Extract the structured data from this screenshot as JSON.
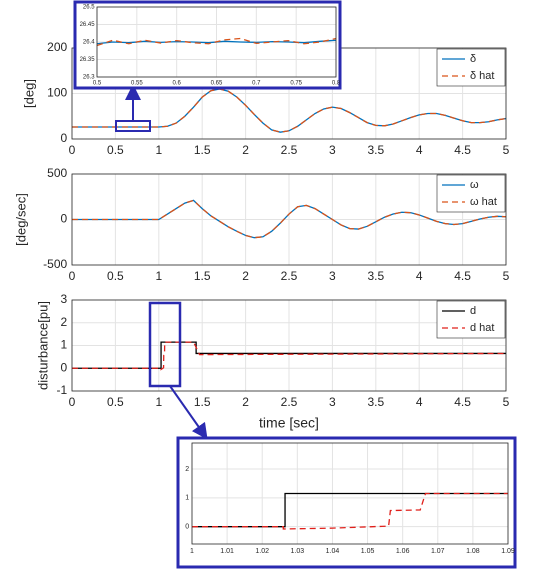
{
  "chart_data": [
    {
      "type": "line",
      "ylabel": "[deg]",
      "xlim": [
        0,
        5
      ],
      "ylim": [
        0,
        200
      ],
      "xticks": [
        0,
        0.5,
        1,
        1.5,
        2,
        2.5,
        3,
        3.5,
        4,
        4.5,
        5
      ],
      "yticks": [
        0,
        100,
        200
      ],
      "grid": true,
      "legend": "upper right",
      "x": [
        0,
        0.1,
        0.2,
        0.3,
        0.4,
        0.5,
        0.6,
        0.7,
        0.8,
        0.9,
        1.0,
        1.1,
        1.2,
        1.3,
        1.4,
        1.5,
        1.6,
        1.7,
        1.8,
        1.9,
        2.0,
        2.1,
        2.2,
        2.3,
        2.4,
        2.5,
        2.6,
        2.7,
        2.8,
        2.9,
        3.0,
        3.1,
        3.2,
        3.3,
        3.4,
        3.5,
        3.6,
        3.7,
        3.8,
        3.9,
        4.0,
        4.1,
        4.2,
        4.3,
        4.4,
        4.5,
        4.6,
        4.7,
        4.8,
        4.9,
        5.0
      ],
      "series": [
        {
          "name": "δ",
          "color": "#0072bd",
          "line_style": "solid",
          "values": [
            26.4,
            26.4,
            26.4,
            26.4,
            26.4,
            26.4,
            26.4,
            26.4,
            26.4,
            26.4,
            26.4,
            28,
            35,
            50,
            70,
            92,
            106,
            110,
            105,
            92,
            74,
            54,
            35,
            20,
            15,
            18,
            28,
            42,
            56,
            66,
            70,
            67,
            58,
            47,
            36,
            30,
            29,
            33,
            40,
            47,
            53,
            56,
            56,
            52,
            46,
            40,
            36,
            36,
            38,
            42,
            45
          ]
        },
        {
          "name": "δ hat",
          "color": "#d95319",
          "line_style": "dashed",
          "values": [
            26.4,
            26.4,
            26.4,
            26.4,
            26.4,
            26.4,
            26.4,
            26.4,
            26.4,
            26.4,
            26.4,
            28,
            35,
            50,
            70,
            92,
            106,
            110,
            105,
            92,
            74,
            54,
            35,
            20,
            15,
            18,
            28,
            42,
            56,
            66,
            70,
            67,
            58,
            47,
            36,
            30,
            29,
            33,
            40,
            47,
            53,
            56,
            56,
            52,
            46,
            40,
            36,
            36,
            38,
            42,
            45
          ]
        }
      ]
    },
    {
      "type": "line",
      "xlim": [
        0.5,
        0.8
      ],
      "ylim": [
        26.3,
        26.5
      ],
      "xticks": [
        0.5,
        0.55,
        0.6,
        0.65,
        0.7,
        0.75,
        0.8
      ],
      "yticks": [
        26.3,
        26.35,
        26.4,
        26.45,
        26.5
      ],
      "grid": true,
      "x": [
        0.5,
        0.52,
        0.54,
        0.56,
        0.58,
        0.6,
        0.62,
        0.64,
        0.66,
        0.68,
        0.7,
        0.72,
        0.74,
        0.76,
        0.78,
        0.8
      ],
      "series": [
        {
          "color": "#0072bd",
          "line_style": "solid",
          "values": [
            26.395,
            26.4,
            26.398,
            26.402,
            26.399,
            26.401,
            26.4,
            26.398,
            26.402,
            26.4,
            26.399,
            26.401,
            26.4,
            26.398,
            26.402,
            26.405
          ]
        },
        {
          "color": "#d95319",
          "line_style": "dashed",
          "values": [
            26.39,
            26.405,
            26.395,
            26.405,
            26.397,
            26.404,
            26.398,
            26.395,
            26.406,
            26.41,
            26.396,
            26.4,
            26.404,
            26.395,
            26.4,
            26.41
          ]
        }
      ]
    },
    {
      "type": "line",
      "ylabel": "[deg/sec]",
      "xlim": [
        0,
        5
      ],
      "ylim": [
        -500,
        500
      ],
      "xticks": [
        0,
        0.5,
        1,
        1.5,
        2,
        2.5,
        3,
        3.5,
        4,
        4.5,
        5
      ],
      "yticks": [
        -500,
        0,
        500
      ],
      "grid": true,
      "legend": "upper right",
      "x": [
        0,
        0.1,
        0.2,
        0.3,
        0.4,
        0.5,
        0.6,
        0.7,
        0.8,
        0.9,
        1.0,
        1.1,
        1.2,
        1.3,
        1.4,
        1.5,
        1.6,
        1.7,
        1.8,
        1.9,
        2.0,
        2.1,
        2.2,
        2.3,
        2.4,
        2.5,
        2.6,
        2.7,
        2.8,
        2.9,
        3.0,
        3.1,
        3.2,
        3.3,
        3.4,
        3.5,
        3.6,
        3.7,
        3.8,
        3.9,
        4.0,
        4.1,
        4.2,
        4.3,
        4.4,
        4.5,
        4.6,
        4.7,
        4.8,
        4.9,
        5.0
      ],
      "series": [
        {
          "name": "ω",
          "color": "#0072bd",
          "line_style": "solid",
          "values": [
            0,
            0,
            0,
            0,
            0,
            0,
            0,
            0,
            0,
            0,
            0,
            60,
            120,
            180,
            210,
            120,
            40,
            -20,
            -80,
            -130,
            -175,
            -200,
            -190,
            -130,
            -40,
            60,
            140,
            155,
            120,
            60,
            0,
            -60,
            -100,
            -105,
            -75,
            -25,
            25,
            60,
            80,
            75,
            50,
            15,
            -20,
            -45,
            -55,
            -45,
            -20,
            5,
            25,
            35,
            30
          ]
        },
        {
          "name": "ω hat",
          "color": "#d95319",
          "line_style": "dashed",
          "values": [
            0,
            0,
            0,
            0,
            0,
            0,
            0,
            0,
            0,
            0,
            0,
            60,
            120,
            180,
            210,
            120,
            40,
            -20,
            -80,
            -130,
            -175,
            -200,
            -190,
            -130,
            -40,
            60,
            140,
            155,
            120,
            60,
            0,
            -60,
            -100,
            -105,
            -75,
            -25,
            25,
            60,
            80,
            75,
            50,
            15,
            -20,
            -45,
            -55,
            -45,
            -20,
            5,
            25,
            35,
            30
          ]
        }
      ]
    },
    {
      "type": "line",
      "ylabel": "disturbance[pu]",
      "xlabel": "time [sec]",
      "xlim": [
        0,
        5
      ],
      "ylim": [
        -1,
        3
      ],
      "xticks": [
        0,
        0.5,
        1,
        1.5,
        2,
        2.5,
        3,
        3.5,
        4,
        4.5,
        5
      ],
      "yticks": [
        -1,
        0,
        1,
        2,
        3
      ],
      "grid": true,
      "legend": "upper right",
      "series": [
        {
          "name": "d",
          "color": "#000000",
          "line_style": "solid",
          "x": [
            0,
            1.026,
            1.026,
            1.43,
            1.43,
            5
          ],
          "values": [
            0,
            0,
            1.15,
            1.15,
            0.65,
            0.65
          ]
        },
        {
          "name": "d hat",
          "color": "#e0201b",
          "line_style": "dashed",
          "x": [
            0,
            1.026,
            1.026,
            1.055,
            1.057,
            1.066,
            1.068,
            1.4,
            1.47,
            5
          ],
          "values": [
            0,
            0,
            -0.05,
            0.02,
            0.56,
            0.58,
            1.15,
            1.15,
            0.6,
            0.65
          ]
        }
      ]
    },
    {
      "type": "line",
      "xlim": [
        1,
        1.09
      ],
      "ylim": [
        -0.6,
        2.9
      ],
      "xticks": [
        1,
        1.01,
        1.02,
        1.03,
        1.04,
        1.05,
        1.06,
        1.07,
        1.08,
        1.09
      ],
      "yticks": [
        0,
        1,
        2
      ],
      "grid": true,
      "series": [
        {
          "color": "#000000",
          "line_style": "solid",
          "x": [
            1,
            1.0265,
            1.0265,
            1.09
          ],
          "values": [
            0,
            0,
            1.15,
            1.15
          ]
        },
        {
          "color": "#e0201b",
          "line_style": "dashed",
          "x": [
            1,
            1.026,
            1.026,
            1.04,
            1.056,
            1.0565,
            1.065,
            1.0665,
            1.09
          ],
          "values": [
            0,
            0,
            -0.08,
            -0.05,
            0.02,
            0.56,
            0.58,
            1.15,
            1.15
          ]
        }
      ]
    }
  ]
}
